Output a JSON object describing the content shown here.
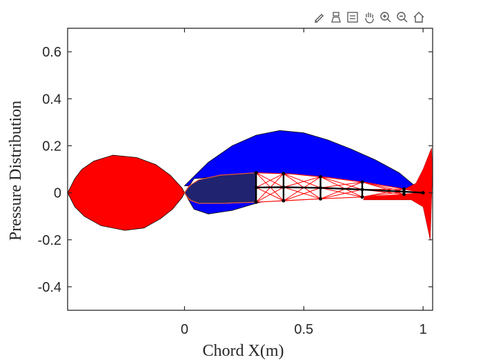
{
  "toolbar": {
    "icons": [
      "brush-icon",
      "data-tips-icon",
      "legend-icon",
      "pan-icon",
      "zoom-in-icon",
      "zoom-out-icon",
      "home-icon"
    ]
  },
  "colors": {
    "pressure_lower": "#ff0000",
    "pressure_upper": "#0000ff",
    "spar_fill": "#1f2370",
    "truss": "#ff0000",
    "beam": "#000000"
  },
  "chart_data": {
    "type": "area",
    "xlabel": "Chord X(m)",
    "ylabel": "Pressure Distribution",
    "xlim": [
      -0.49,
      1.04
    ],
    "ylim": [
      -0.5,
      0.7
    ],
    "xticks": [
      0,
      0.5,
      1
    ],
    "xtick_labels": [
      "0",
      "0.5",
      "1"
    ],
    "yticks": [
      -0.4,
      -0.2,
      0,
      0.2,
      0.4,
      0.6
    ],
    "ytick_labels": [
      "-0.4",
      "-0.2",
      "0",
      "0.2",
      "0.4",
      "0.6"
    ],
    "grid": false,
    "red_region": [
      [
        -0.49,
        0.0
      ],
      [
        -0.46,
        0.06
      ],
      [
        -0.43,
        0.1
      ],
      [
        -0.38,
        0.135
      ],
      [
        -0.3,
        0.16
      ],
      [
        -0.2,
        0.15
      ],
      [
        -0.12,
        0.12
      ],
      [
        -0.06,
        0.075
      ],
      [
        -0.01,
        0.02
      ],
      [
        0.0,
        0.0
      ],
      [
        -0.01,
        -0.02
      ],
      [
        -0.05,
        -0.07
      ],
      [
        -0.1,
        -0.11
      ],
      [
        -0.17,
        -0.15
      ],
      [
        -0.25,
        -0.16
      ],
      [
        -0.35,
        -0.14
      ],
      [
        -0.42,
        -0.1
      ],
      [
        -0.46,
        -0.06
      ]
    ],
    "blue_region": [
      [
        0.0,
        0.03
      ],
      [
        0.05,
        0.08
      ],
      [
        0.1,
        0.13
      ],
      [
        0.2,
        0.2
      ],
      [
        0.3,
        0.245
      ],
      [
        0.4,
        0.265
      ],
      [
        0.5,
        0.255
      ],
      [
        0.6,
        0.225
      ],
      [
        0.7,
        0.185
      ],
      [
        0.8,
        0.14
      ],
      [
        0.9,
        0.085
      ],
      [
        1.0,
        0.0
      ],
      [
        0.55,
        0.05
      ],
      [
        0.3,
        0.08
      ],
      [
        0.04,
        0.06
      ],
      [
        0.0,
        0.0
      ],
      [
        0.04,
        -0.07
      ],
      [
        0.1,
        -0.09
      ],
      [
        0.2,
        -0.075
      ],
      [
        0.3,
        -0.045
      ],
      [
        0.4,
        -0.02
      ],
      [
        0.5,
        -0.01
      ],
      [
        0.6,
        -0.005
      ],
      [
        1.0,
        0.0
      ]
    ],
    "red_trailing": [
      [
        0.76,
        -0.01
      ],
      [
        0.85,
        0.005
      ],
      [
        0.93,
        0.02
      ],
      [
        0.97,
        0.04
      ],
      [
        1.0,
        0.1
      ],
      [
        1.035,
        0.19
      ],
      [
        1.04,
        0.1
      ],
      [
        1.035,
        -0.04
      ],
      [
        1.03,
        -0.2
      ],
      [
        1.0,
        -0.06
      ],
      [
        0.95,
        -0.03
      ],
      [
        0.86,
        -0.03
      ],
      [
        0.75,
        -0.03
      ]
    ],
    "airfoil_upper": [
      [
        0.0,
        0.0
      ],
      [
        0.02,
        0.03
      ],
      [
        0.06,
        0.055
      ],
      [
        0.15,
        0.075
      ],
      [
        0.3,
        0.085
      ],
      [
        0.45,
        0.08
      ],
      [
        0.6,
        0.065
      ],
      [
        0.75,
        0.045
      ],
      [
        0.9,
        0.02
      ],
      [
        1.0,
        0.0
      ]
    ],
    "airfoil_lower": [
      [
        0.0,
        0.0
      ],
      [
        0.02,
        -0.03
      ],
      [
        0.06,
        -0.045
      ],
      [
        0.15,
        -0.045
      ],
      [
        0.3,
        -0.04
      ],
      [
        0.45,
        -0.032
      ],
      [
        0.6,
        -0.024
      ],
      [
        0.75,
        -0.018
      ],
      [
        0.9,
        -0.008
      ],
      [
        1.0,
        0.0
      ]
    ],
    "spar_x": [
      0.0,
      0.3
    ],
    "ribs_x": [
      0.3,
      0.415,
      0.57,
      0.745,
      0.92
    ],
    "node_x": [
      0.3,
      0.415,
      0.57,
      0.745,
      0.92,
      1.0
    ]
  }
}
